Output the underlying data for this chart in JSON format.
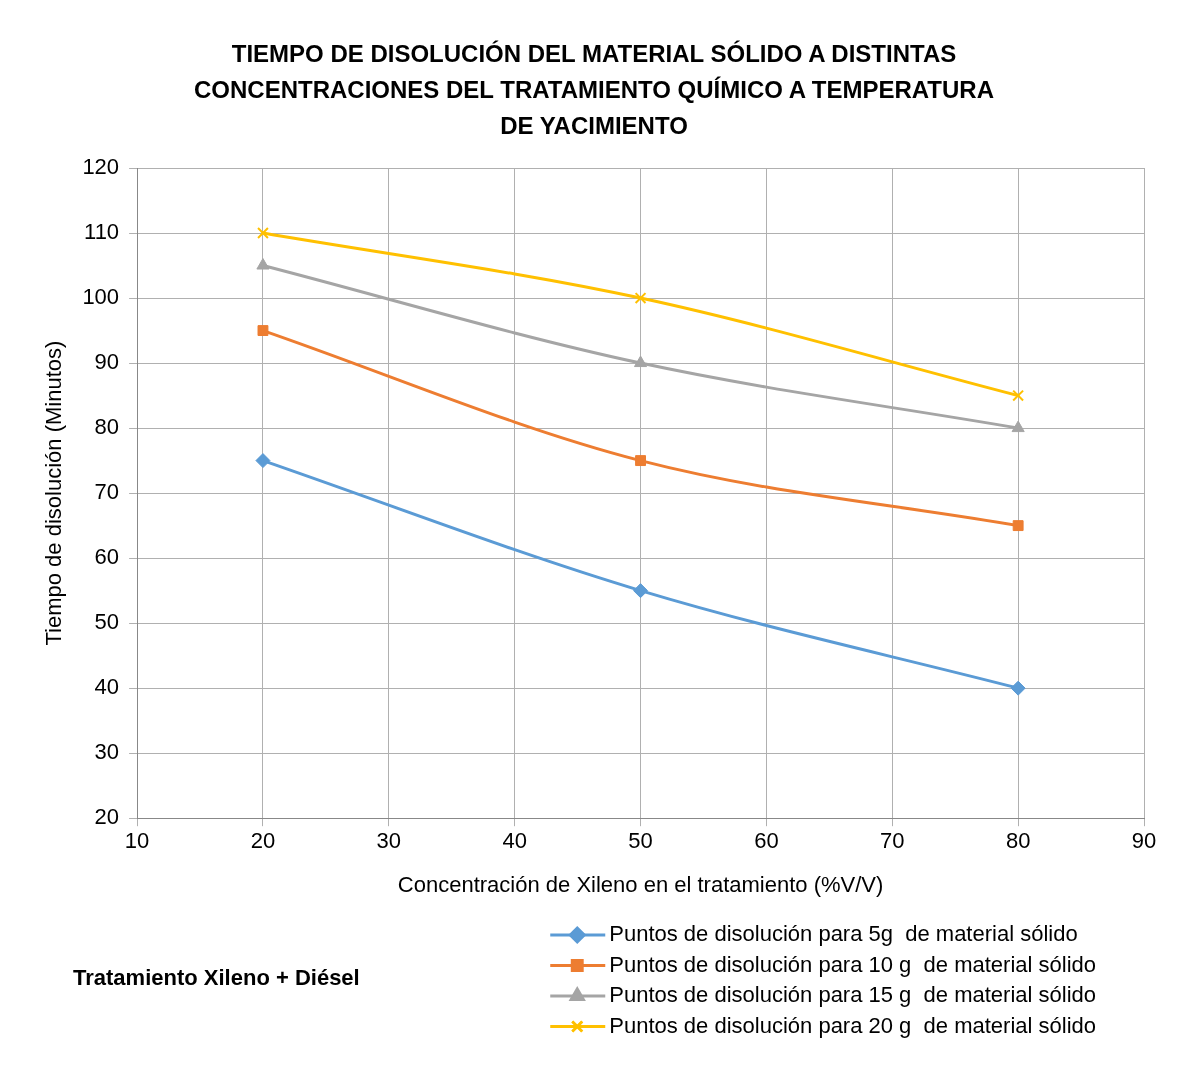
{
  "chart_data": {
    "type": "line",
    "title": "TIEMPO DE DISOLUCIÓN DEL MATERIAL SÓLIDO A DISTINTAS CONCENTRACIONES DEL TRATAMIENTO QUÍMICO A TEMPERATURA DE YACIMIENTO",
    "xlabel": "Concentración de Xileno en el tratamiento (%V/V)",
    "ylabel": "Tiempo de disolución (Minutos)",
    "annotations": [
      "Tratamiento Xileno + Diésel"
    ],
    "x": [
      20,
      50,
      80
    ],
    "xlim": [
      10,
      90
    ],
    "xticks": [
      10,
      20,
      30,
      40,
      50,
      60,
      70,
      80,
      90
    ],
    "ylim": [
      20,
      120
    ],
    "yticks": [
      20,
      30,
      40,
      50,
      60,
      70,
      80,
      90,
      100,
      110,
      120
    ],
    "grid": true,
    "legend": "bottom right",
    "line_style": "solid",
    "series": [
      {
        "name": "Puntos de disolución para 5g  de material sólido",
        "color": "#5b9bd5",
        "marker": "diamond",
        "values": [
          75,
          55,
          40
        ]
      },
      {
        "name": "Puntos de disolución para 10 g  de material sólido",
        "color": "#ed7d31",
        "marker": "square",
        "values": [
          95,
          75,
          65
        ]
      },
      {
        "name": "Puntos de disolución para 15 g  de material sólido",
        "color": "#a5a5a5",
        "marker": "triangle",
        "values": [
          105,
          90,
          80
        ]
      },
      {
        "name": "Puntos de disolución para 20 g  de material sólido",
        "color": "#ffc000",
        "marker": "cross",
        "values": [
          110,
          100,
          85
        ]
      }
    ]
  }
}
